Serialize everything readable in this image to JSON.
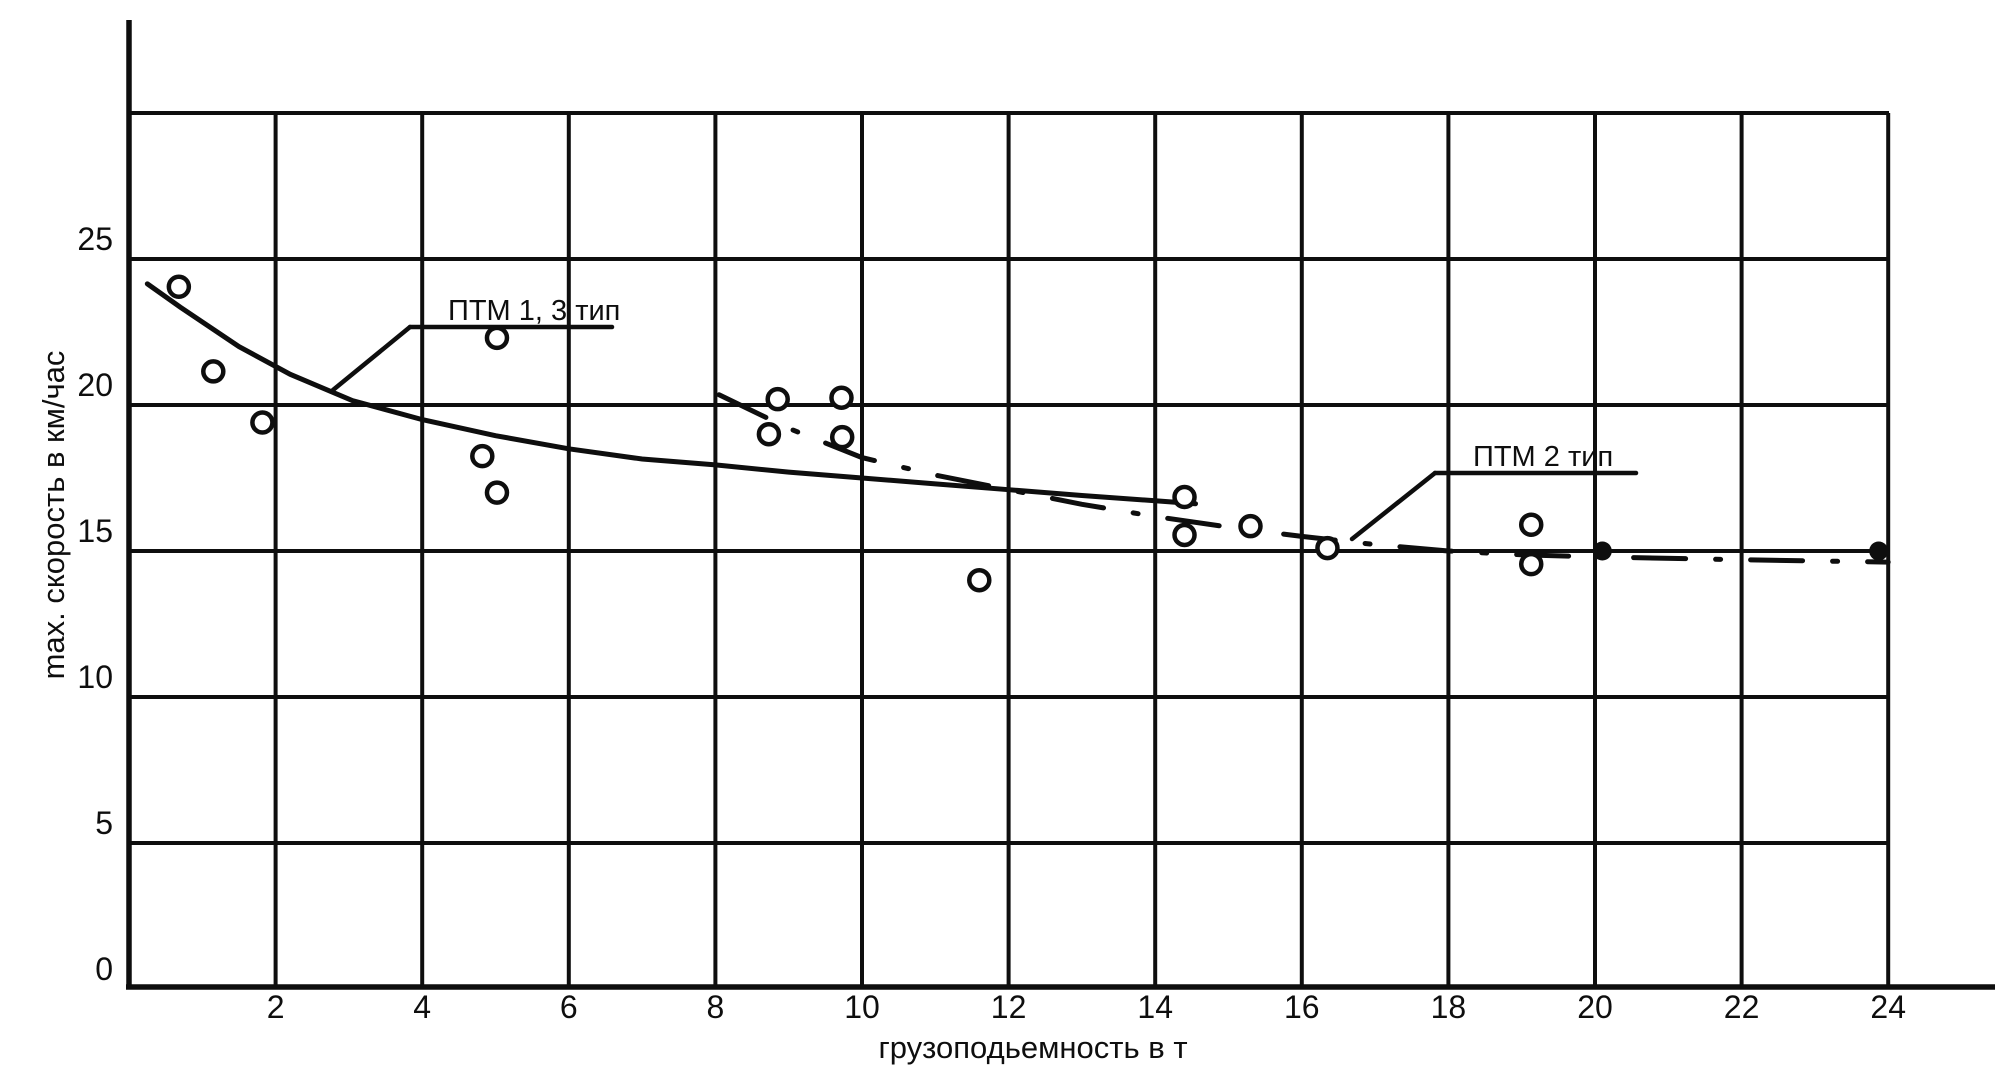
{
  "figure": {
    "background": "#ffffff",
    "ink": "#0e0e0e"
  },
  "chart_data": {
    "type": "scatter",
    "title": "",
    "xlabel": "грузоподьемность в т",
    "ylabel": "max. скорость в км/час",
    "xlim": [
      0,
      25.5
    ],
    "ylim": [
      0,
      33.2
    ],
    "grid": "on",
    "legend_position": "none",
    "x_ticks": [
      2,
      4,
      6,
      8,
      10,
      12,
      14,
      16,
      18,
      20,
      22,
      24
    ],
    "y_ticks": [
      0,
      5,
      10,
      15,
      20,
      25
    ],
    "x_gridlines": [
      2,
      4,
      6,
      8,
      10,
      12,
      14,
      16,
      18,
      20,
      22,
      24
    ],
    "y_gridlines": [
      5,
      10,
      15,
      20,
      25,
      30
    ],
    "scatter_points": [
      [
        0.68,
        24.05
      ],
      [
        1.15,
        21.15
      ],
      [
        1.82,
        19.4
      ],
      [
        5.02,
        22.3
      ],
      [
        4.82,
        18.25
      ],
      [
        5.02,
        17.0
      ],
      [
        8.73,
        19.0
      ],
      [
        8.85,
        20.2
      ],
      [
        9.72,
        20.25
      ],
      [
        9.73,
        18.9
      ],
      [
        11.6,
        14.0
      ],
      [
        14.4,
        16.85
      ],
      [
        14.4,
        15.55
      ],
      [
        15.3,
        15.85
      ],
      [
        16.35,
        15.1
      ],
      [
        19.13,
        15.9
      ],
      [
        19.13,
        14.55
      ]
    ],
    "filled_points": [
      [
        20.1,
        15.0
      ],
      [
        23.87,
        15.0
      ]
    ],
    "series": [
      {
        "name": "ПТМ 1, 3 тип",
        "line_style": "solid",
        "points": [
          [
            0.25,
            24.15
          ],
          [
            0.7,
            23.35
          ],
          [
            1.5,
            22.0
          ],
          [
            2.2,
            21.05
          ],
          [
            3.05,
            20.15
          ],
          [
            4,
            19.5
          ],
          [
            5,
            18.95
          ],
          [
            6,
            18.5
          ],
          [
            7,
            18.15
          ],
          [
            8,
            17.95
          ],
          [
            9,
            17.7
          ],
          [
            10,
            17.5
          ],
          [
            11,
            17.3
          ],
          [
            12,
            17.1
          ],
          [
            13,
            16.9
          ],
          [
            14,
            16.72
          ],
          [
            14.55,
            16.62
          ]
        ]
      },
      {
        "name": "ПТМ 2 тип",
        "line_style": "dash-dot",
        "points": [
          [
            8.05,
            20.35
          ],
          [
            9,
            19.2
          ],
          [
            10,
            18.2
          ],
          [
            11,
            17.6
          ],
          [
            12,
            17.1
          ],
          [
            13,
            16.6
          ],
          [
            14,
            16.18
          ],
          [
            15,
            15.82
          ],
          [
            16,
            15.5
          ],
          [
            17,
            15.22
          ],
          [
            18,
            15.0
          ],
          [
            19,
            14.87
          ],
          [
            20,
            14.8
          ],
          [
            22,
            14.7
          ],
          [
            24,
            14.62
          ]
        ]
      }
    ],
    "annotations": [
      {
        "text": "ПТМ 1, 3  тип",
        "points_to_series": "ПТМ 1, 3 тип"
      },
      {
        "text": "ПТМ 2 тип",
        "points_to_series": "ПТМ 2 тип"
      }
    ]
  }
}
